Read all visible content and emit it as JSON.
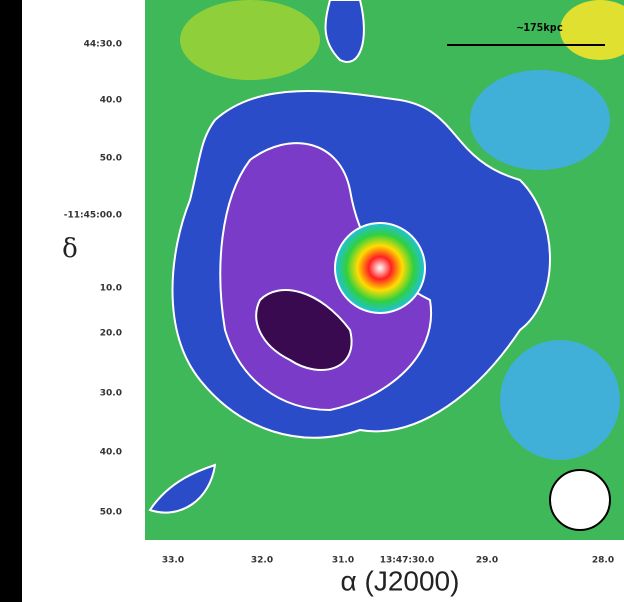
{
  "figure": {
    "scale_label": "~175kpc",
    "y_axis_label": "δ",
    "x_axis_label": "α (J2000)",
    "y_ticks": [
      "44:30.0",
      "40.0",
      "50.0",
      "-11:45:00.0",
      "10.0",
      "20.0",
      "30.0",
      "40.0",
      "50.0"
    ],
    "x_ticks": [
      "33.0",
      "32.0",
      "31.0",
      "13:47:30.0",
      "29.0",
      "28.0"
    ]
  }
}
